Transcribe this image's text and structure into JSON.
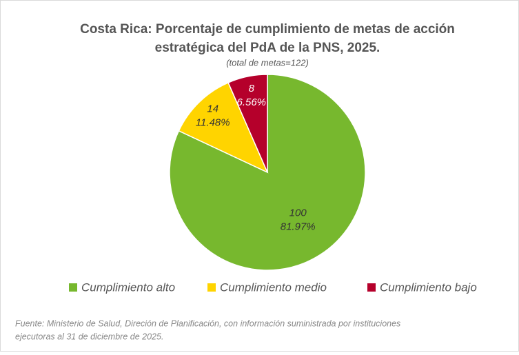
{
  "chart_data": {
    "type": "pie",
    "title_lines": [
      "Costa Rica: Porcentaje de cumplimiento de metas de acción",
      "estratégica del PdA de la PNS, 2025."
    ],
    "subtitle": "(total de metas=122)",
    "categories": [
      "Cumplimiento alto",
      "Cumplimiento medio",
      "Cumplimiento bajo"
    ],
    "values": [
      100,
      14,
      8
    ],
    "percent_labels": [
      "81.97%",
      "11.48%",
      "6.56%"
    ],
    "colors": [
      "#77b82e",
      "#ffd400",
      "#b5002b"
    ],
    "label_colors": [
      "#333333",
      "#333333",
      "#ffffff"
    ],
    "legend": "bottom",
    "source_lines": [
      "Fuente: Ministerio de Salud, Direción de Planificación, con información suministrada por instituciones",
      "ejecutoras al 31 de diciembre de 2025."
    ]
  }
}
